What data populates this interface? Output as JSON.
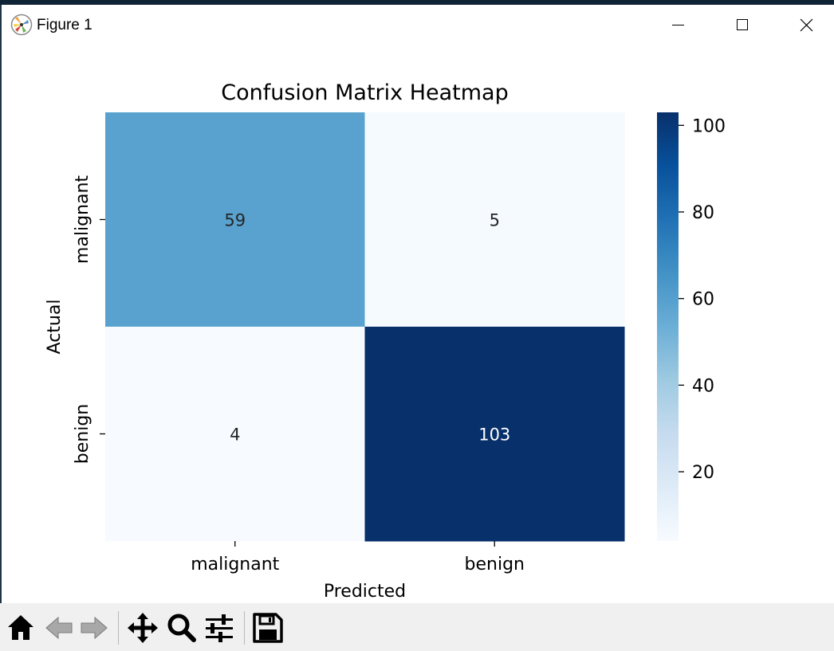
{
  "window": {
    "title": "Figure 1",
    "controls": [
      "minimize",
      "maximize",
      "close"
    ]
  },
  "toolbar": {
    "tools": [
      {
        "name": "home",
        "icon": "home-icon"
      },
      {
        "name": "back",
        "icon": "back-arrow-icon"
      },
      {
        "name": "forward",
        "icon": "forward-arrow-icon"
      },
      {
        "name": "pan",
        "icon": "move-icon"
      },
      {
        "name": "zoom",
        "icon": "magnifier-icon"
      },
      {
        "name": "configure-subplots",
        "icon": "sliders-icon"
      },
      {
        "name": "save",
        "icon": "floppy-disk-icon"
      }
    ]
  },
  "chart_data": {
    "type": "heatmap",
    "title": "Confusion Matrix Heatmap",
    "xlabel": "Predicted",
    "ylabel": "Actual",
    "x_categories": [
      "malignant",
      "benign"
    ],
    "y_categories": [
      "malignant",
      "benign"
    ],
    "values": [
      [
        59,
        5
      ],
      [
        4,
        103
      ]
    ],
    "annotations": [
      [
        "59",
        "5"
      ],
      [
        "4",
        "103"
      ]
    ],
    "colormap": "Blues",
    "colorbar": {
      "min": 4,
      "max": 103,
      "ticks": [
        20,
        40,
        60,
        80,
        100
      ],
      "tick_labels": [
        "20",
        "40",
        "60",
        "80",
        "100"
      ]
    },
    "colormap_stops": [
      "#f7fbff",
      "#deebf7",
      "#c6dbef",
      "#9ecae1",
      "#6baed6",
      "#4292c6",
      "#2171b5",
      "#08519c",
      "#08306b"
    ]
  }
}
